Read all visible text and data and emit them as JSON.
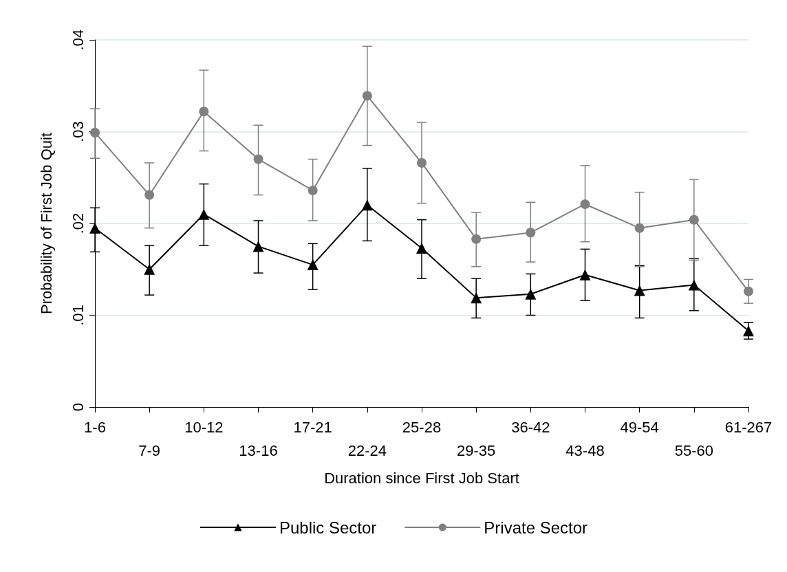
{
  "chart_data": {
    "type": "line",
    "xlabel": "Duration since First Job Start",
    "ylabel": "Probability of First Job Quit",
    "categories": [
      "1-6",
      "7-9",
      "10-12",
      "13-16",
      "17-21",
      "22-24",
      "25-28",
      "29-35",
      "36-42",
      "43-48",
      "49-54",
      "55-60",
      "61-267"
    ],
    "series": [
      {
        "name": "Public Sector",
        "color": "#000000",
        "marker": "triangle",
        "values": [
          0.0195,
          0.015,
          0.021,
          0.0175,
          0.0155,
          0.022,
          0.0173,
          0.0119,
          0.0123,
          0.0144,
          0.0127,
          0.0133,
          0.0083
        ],
        "errors": [
          [
            0.0169,
            0.0217
          ],
          [
            0.0122,
            0.0176
          ],
          [
            0.0176,
            0.0243
          ],
          [
            0.0146,
            0.0203
          ],
          [
            0.0128,
            0.0178
          ],
          [
            0.0181,
            0.026
          ],
          [
            0.014,
            0.0204
          ],
          [
            0.0097,
            0.014
          ],
          [
            0.01,
            0.0145
          ],
          [
            0.0116,
            0.0172
          ],
          [
            0.0097,
            0.0154
          ],
          [
            0.0105,
            0.0162
          ],
          [
            0.0074,
            0.0092
          ]
        ]
      },
      {
        "name": "Private Sector",
        "color": "#808080",
        "marker": "circle",
        "values": [
          0.0299,
          0.0231,
          0.0322,
          0.027,
          0.0236,
          0.0339,
          0.0266,
          0.0183,
          0.019,
          0.0221,
          0.0195,
          0.0204,
          0.0126
        ],
        "errors": [
          [
            0.0271,
            0.0325
          ],
          [
            0.0195,
            0.0266
          ],
          [
            0.0279,
            0.0367
          ],
          [
            0.0231,
            0.0307
          ],
          [
            0.0203,
            0.027
          ],
          [
            0.0285,
            0.0393
          ],
          [
            0.0222,
            0.031
          ],
          [
            0.0153,
            0.0212
          ],
          [
            0.0158,
            0.0223
          ],
          [
            0.018,
            0.0263
          ],
          [
            0.0153,
            0.0234
          ],
          [
            0.016,
            0.0248
          ],
          [
            0.0113,
            0.0139
          ]
        ]
      }
    ],
    "ylim": [
      0,
      0.04
    ],
    "yticks": [
      {
        "value": 0,
        "label": "0"
      },
      {
        "value": 0.01,
        "label": ".01"
      },
      {
        "value": 0.02,
        "label": ".02"
      },
      {
        "value": 0.03,
        "label": ".03"
      },
      {
        "value": 0.04,
        "label": ".04"
      }
    ],
    "grid": "y",
    "legend": "bottom",
    "line_style": "solid"
  }
}
